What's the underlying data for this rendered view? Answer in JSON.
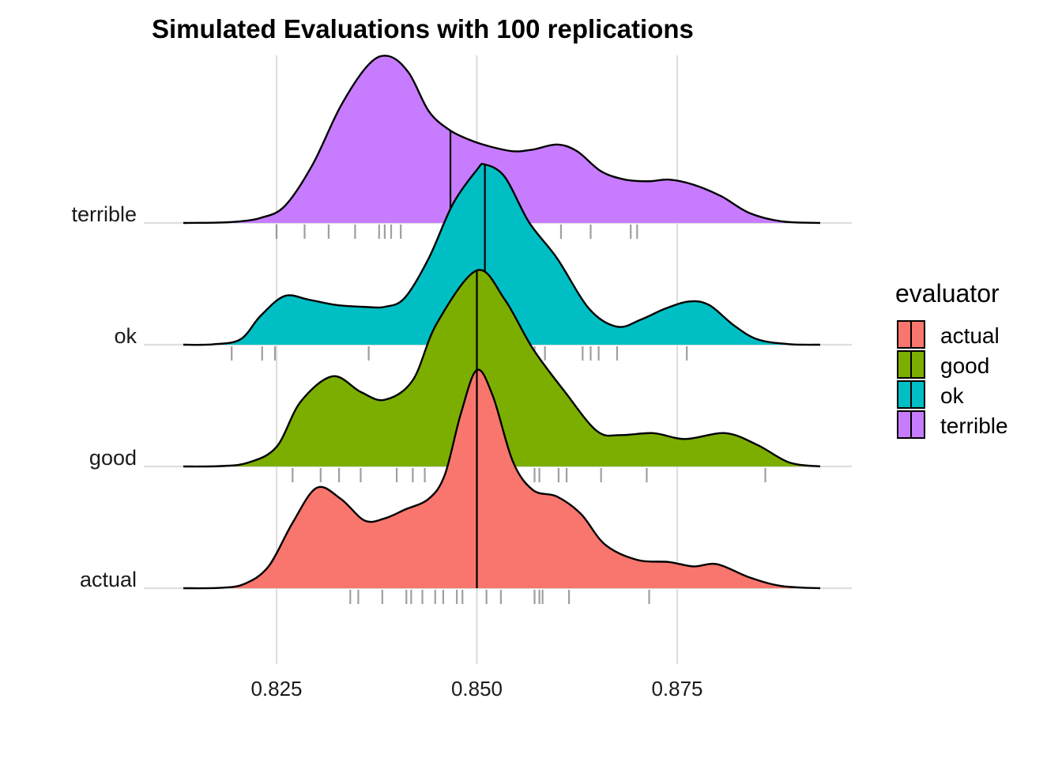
{
  "chart_data": {
    "type": "ridgeline",
    "title": "Simulated Evaluations with 100 replications",
    "xlabel": "",
    "ylabel": "",
    "x_range": [
      0.8125,
      0.8925
    ],
    "x_ticks": [
      {
        "value": 0.825,
        "label": "0.825"
      },
      {
        "value": 0.85,
        "label": "0.850"
      },
      {
        "value": 0.875,
        "label": "0.875"
      }
    ],
    "legend": {
      "title": "evaluator",
      "position": "right"
    },
    "grid": true,
    "series": [
      {
        "name": "actual",
        "color": "#F8766D",
        "median": 0.85,
        "density_peaks": [
          {
            "x": 0.83,
            "height": 0.46
          },
          {
            "x": 0.8405,
            "height": 0.36
          },
          {
            "x": 0.85,
            "height": 1.0
          },
          {
            "x": 0.86,
            "height": 0.42
          },
          {
            "x": 0.88,
            "height": 0.1
          }
        ],
        "density_points": [
          [
            0.8125,
            0.0
          ],
          [
            0.818,
            0.002
          ],
          [
            0.821,
            0.02
          ],
          [
            0.824,
            0.1
          ],
          [
            0.827,
            0.3
          ],
          [
            0.83,
            0.46
          ],
          [
            0.833,
            0.41
          ],
          [
            0.836,
            0.31
          ],
          [
            0.8385,
            0.32
          ],
          [
            0.841,
            0.36
          ],
          [
            0.844,
            0.41
          ],
          [
            0.846,
            0.52
          ],
          [
            0.848,
            0.8
          ],
          [
            0.85,
            1.0
          ],
          [
            0.852,
            0.88
          ],
          [
            0.8545,
            0.58
          ],
          [
            0.857,
            0.45
          ],
          [
            0.86,
            0.42
          ],
          [
            0.863,
            0.34
          ],
          [
            0.866,
            0.2
          ],
          [
            0.87,
            0.13
          ],
          [
            0.874,
            0.12
          ],
          [
            0.877,
            0.1
          ],
          [
            0.88,
            0.11
          ],
          [
            0.884,
            0.05
          ],
          [
            0.888,
            0.01
          ],
          [
            0.8925,
            0.0
          ]
        ],
        "rug": [
          0.8342,
          0.8352,
          0.8382,
          0.8412,
          0.8418,
          0.8432,
          0.8448,
          0.8458,
          0.8475,
          0.8482,
          0.8512,
          0.853,
          0.8572,
          0.8578,
          0.8582,
          0.8615,
          0.8715
        ]
      },
      {
        "name": "good",
        "color": "#7CAE00",
        "median": 0.85,
        "density_peaks": [
          {
            "x": 0.832,
            "height": 0.46
          },
          {
            "x": 0.837,
            "height": 0.34
          },
          {
            "x": 0.85,
            "height": 1.0
          },
          {
            "x": 0.872,
            "height": 0.17
          },
          {
            "x": 0.881,
            "height": 0.17
          }
        ],
        "density_points": [
          [
            0.8125,
            0.0
          ],
          [
            0.818,
            0.002
          ],
          [
            0.8215,
            0.02
          ],
          [
            0.825,
            0.1
          ],
          [
            0.828,
            0.33
          ],
          [
            0.832,
            0.46
          ],
          [
            0.8355,
            0.38
          ],
          [
            0.8385,
            0.34
          ],
          [
            0.842,
            0.44
          ],
          [
            0.845,
            0.73
          ],
          [
            0.85,
            1.0
          ],
          [
            0.8535,
            0.85
          ],
          [
            0.857,
            0.6
          ],
          [
            0.861,
            0.38
          ],
          [
            0.865,
            0.18
          ],
          [
            0.868,
            0.16
          ],
          [
            0.872,
            0.17
          ],
          [
            0.876,
            0.14
          ],
          [
            0.881,
            0.17
          ],
          [
            0.885,
            0.11
          ],
          [
            0.889,
            0.02
          ],
          [
            0.8925,
            0.0
          ]
        ],
        "rug": [
          0.827,
          0.8305,
          0.8328,
          0.8355,
          0.84,
          0.842,
          0.8435,
          0.8525,
          0.8572,
          0.8578,
          0.8602,
          0.8612,
          0.8655,
          0.8712,
          0.886
        ]
      },
      {
        "name": "ok",
        "color": "#00BFC4",
        "median": 0.851,
        "density_points": [
          [
            0.8125,
            0.0
          ],
          [
            0.817,
            0.002
          ],
          [
            0.8205,
            0.03
          ],
          [
            0.823,
            0.16
          ],
          [
            0.826,
            0.27
          ],
          [
            0.829,
            0.25
          ],
          [
            0.8325,
            0.22
          ],
          [
            0.836,
            0.21
          ],
          [
            0.8385,
            0.21
          ],
          [
            0.841,
            0.26
          ],
          [
            0.844,
            0.48
          ],
          [
            0.847,
            0.78
          ],
          [
            0.85,
            0.97
          ],
          [
            0.851,
            1.0
          ],
          [
            0.8535,
            0.93
          ],
          [
            0.8565,
            0.68
          ],
          [
            0.86,
            0.48
          ],
          [
            0.864,
            0.2
          ],
          [
            0.8675,
            0.1
          ],
          [
            0.8705,
            0.14
          ],
          [
            0.8735,
            0.2
          ],
          [
            0.8765,
            0.24
          ],
          [
            0.879,
            0.22
          ],
          [
            0.882,
            0.11
          ],
          [
            0.885,
            0.03
          ],
          [
            0.889,
            0.003
          ],
          [
            0.8925,
            0.0
          ]
        ],
        "rug": [
          0.8194,
          0.8232,
          0.8248,
          0.8365,
          0.8522,
          0.8572,
          0.8585,
          0.8632,
          0.8642,
          0.8652,
          0.8675,
          0.8762
        ]
      },
      {
        "name": "terrible",
        "color": "#C77CFF",
        "median": 0.8467,
        "density_points": [
          [
            0.8125,
            0.0
          ],
          [
            0.8175,
            0.002
          ],
          [
            0.8205,
            0.01
          ],
          [
            0.823,
            0.03
          ],
          [
            0.826,
            0.1
          ],
          [
            0.8295,
            0.35
          ],
          [
            0.833,
            0.7
          ],
          [
            0.8365,
            0.95
          ],
          [
            0.839,
            1.0
          ],
          [
            0.8415,
            0.9
          ],
          [
            0.844,
            0.67
          ],
          [
            0.8465,
            0.56
          ],
          [
            0.849,
            0.5
          ],
          [
            0.8515,
            0.46
          ],
          [
            0.8545,
            0.43
          ],
          [
            0.857,
            0.44
          ],
          [
            0.86,
            0.47
          ],
          [
            0.8625,
            0.43
          ],
          [
            0.8655,
            0.31
          ],
          [
            0.8685,
            0.26
          ],
          [
            0.8715,
            0.25
          ],
          [
            0.874,
            0.26
          ],
          [
            0.877,
            0.23
          ],
          [
            0.8805,
            0.16
          ],
          [
            0.884,
            0.06
          ],
          [
            0.888,
            0.01
          ],
          [
            0.8925,
            0.0
          ]
        ],
        "rug": [
          0.825,
          0.8285,
          0.8315,
          0.8348,
          0.8378,
          0.8385,
          0.8393,
          0.8405,
          0.8457,
          0.8505,
          0.8605,
          0.8642,
          0.8692,
          0.87
        ]
      }
    ]
  }
}
